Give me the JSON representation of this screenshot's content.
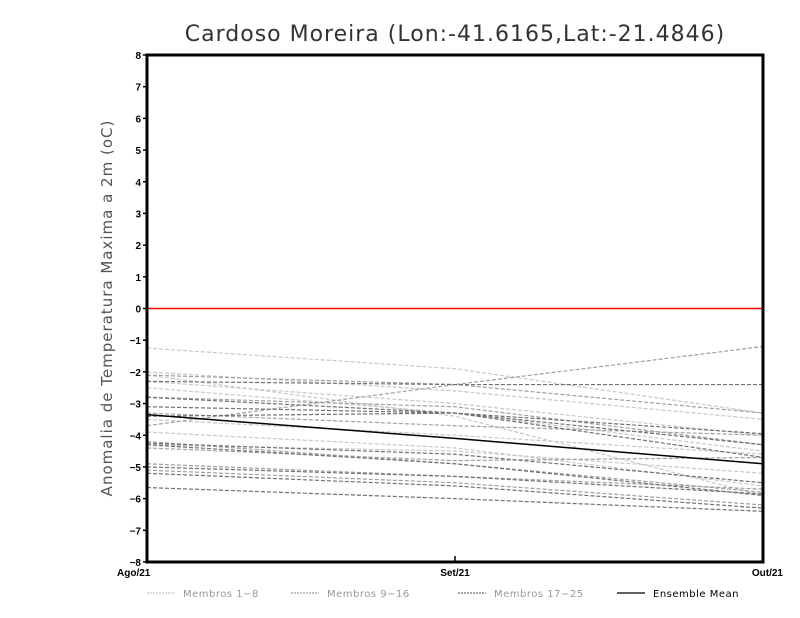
{
  "chart_data": {
    "type": "line",
    "title": "Cardoso Moreira (Lon:-41.6165,Lat:-21.4846)",
    "ylabel": "Anomalia de Temperatura Maxima a 2m (oC)",
    "xlabel": "",
    "categories": [
      "Ago/21",
      "Set/21",
      "Out/21"
    ],
    "ylim": [
      -8,
      8
    ],
    "yticks": [
      "-8",
      "-7",
      "-6",
      "-5",
      "-4",
      "-3",
      "-2",
      "-1",
      "0",
      "1",
      "2",
      "3",
      "4",
      "5",
      "6",
      "7",
      "8"
    ],
    "reference_line": {
      "value": 0,
      "color": "#ff0000"
    },
    "groups": [
      {
        "name": "Membros 1-8",
        "color": "#c8c8c8",
        "dashed": true,
        "series": [
          [
            -1.25,
            -1.9,
            -3.3
          ],
          [
            -2.0,
            -2.6,
            -3.5
          ],
          [
            -2.3,
            -3.0,
            -4.0
          ],
          [
            -2.5,
            -3.3,
            -4.5
          ],
          [
            -3.5,
            -4.0,
            -4.6
          ],
          [
            -3.9,
            -4.4,
            -5.6
          ],
          [
            -4.3,
            -4.5,
            -5.2
          ],
          [
            -2.1,
            -3.4,
            -5.9
          ]
        ]
      },
      {
        "name": "Membros 9-16",
        "color": "#a0a0a0",
        "dashed": true,
        "series": [
          [
            -2.1,
            -2.4,
            -3.3
          ],
          [
            -2.8,
            -3.1,
            -4.3
          ],
          [
            -3.7,
            -2.4,
            -1.2
          ],
          [
            -4.2,
            -4.9,
            -5.8
          ],
          [
            -4.9,
            -5.3,
            -5.7
          ],
          [
            -5.1,
            -5.5,
            -6.2
          ],
          [
            -3.3,
            -3.7,
            -4.0
          ],
          [
            -4.4,
            -4.8,
            -4.7
          ]
        ]
      },
      {
        "name": "Membros 17-25",
        "color": "#707070",
        "dashed": true,
        "series": [
          [
            -2.3,
            -2.4,
            -2.4
          ],
          [
            -2.8,
            -3.3,
            -3.95
          ],
          [
            -3.4,
            -3.3,
            -4.3
          ],
          [
            -4.25,
            -4.6,
            -5.5
          ],
          [
            -5.0,
            -5.3,
            -5.85
          ],
          [
            -5.2,
            -5.6,
            -6.3
          ],
          [
            -5.65,
            -6.0,
            -6.4
          ],
          [
            -4.3,
            -4.9,
            -5.9
          ],
          [
            -3.1,
            -3.3,
            -4.7
          ]
        ]
      },
      {
        "name": "Ensemble Mean",
        "color": "#000000",
        "dashed": false,
        "series": [
          [
            -3.35,
            -4.1,
            -4.9
          ]
        ]
      }
    ],
    "legend_position": "bottom",
    "grid": false
  }
}
